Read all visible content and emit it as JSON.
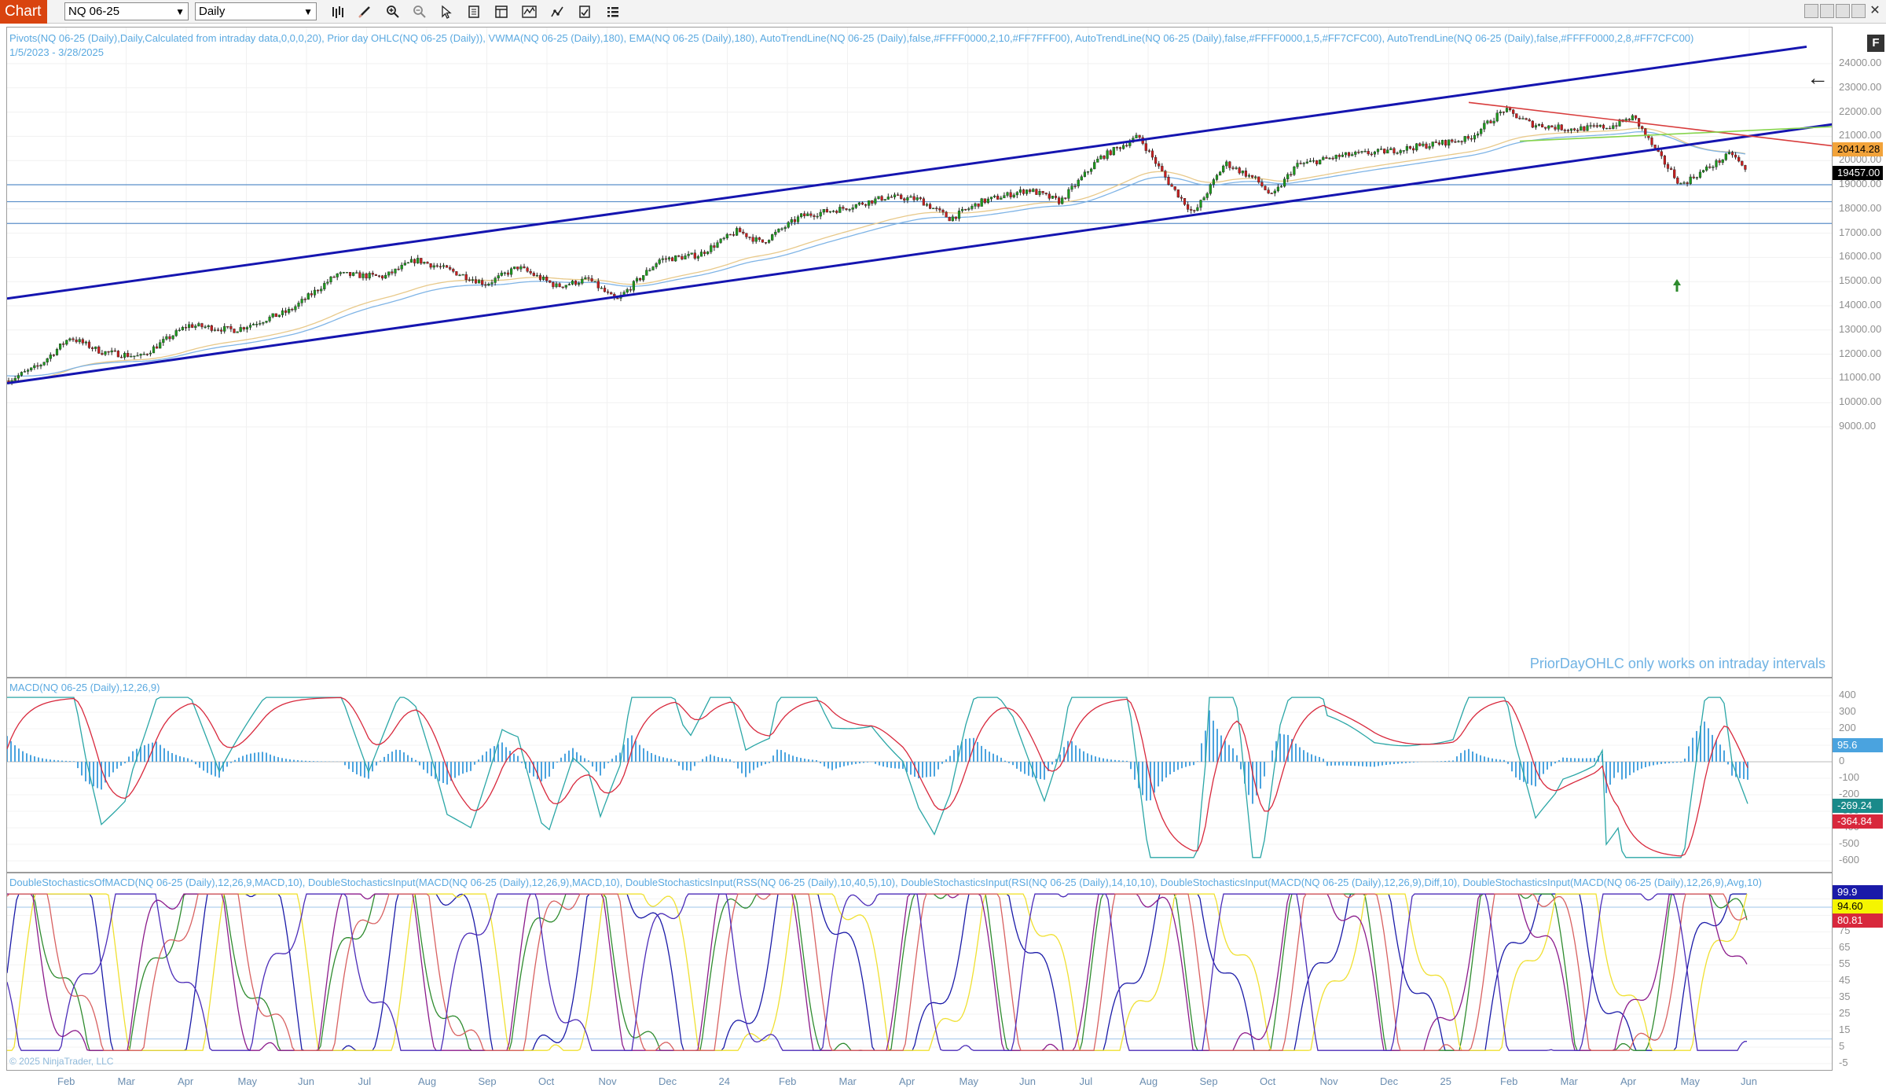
{
  "toolbar": {
    "tab_label": "Chart",
    "instrument": "NQ 06-25",
    "period": "Daily",
    "icons": [
      "bar-type-icon",
      "draw-pencil-icon",
      "zoom-in-icon",
      "zoom-out-icon",
      "pointer-icon",
      "data-box-icon",
      "properties-icon",
      "indicators-icon",
      "strategies-icon",
      "templates-icon",
      "menu-icon"
    ]
  },
  "window_controls": [
    "minimize",
    "maximize",
    "restore",
    "close"
  ],
  "price_panel": {
    "indicator_header": "Pivots(NQ 06-25 (Daily),Daily,Calculated from intraday data,0,0,0,20), Prior day OHLC(NQ 06-25 (Daily)), VWMA(NQ 06-25 (Daily),180), EMA(NQ 06-25 (Daily),180), AutoTrendLine(NQ 06-25 (Daily),false,#FFFF0000,2,10,#FF7FFF00), AutoTrendLine(NQ 06-25 (Daily),false,#FFFF0000,1,5,#FF7CFC00), AutoTrendLine(NQ 06-25 (Daily),false,#FFFF0000,2,8,#FF7CFC00)",
    "date_range": "1/5/2023 - 3/28/2025",
    "note": "PriorDayOHLC only works on intraday intervals",
    "axis_labels": [
      "24000.00",
      "23000.00",
      "22000.00",
      "21000.00",
      "20000.00",
      "19000.00",
      "18000.00",
      "17000.00",
      "16000.00",
      "15000.00",
      "14000.00",
      "13000.00",
      "12000.00",
      "11000.00",
      "10000.00",
      "9000.00"
    ],
    "price_tags": [
      {
        "value": "20414.28",
        "bg": "#f2a33a"
      },
      {
        "value": "19457.00",
        "bg": "#000000"
      }
    ],
    "horizontal_levels": [
      19000,
      18300,
      17400
    ]
  },
  "macd_panel": {
    "label": "MACD(NQ 06-25 (Daily),12,26,9)",
    "axis_labels": [
      "400",
      "300",
      "200",
      "100",
      "0",
      "-100",
      "-200",
      "-300",
      "-400",
      "-500",
      "-600"
    ],
    "tags": [
      {
        "value": "95.6",
        "bg": "#4aa3df"
      },
      {
        "value": "-269.24",
        "bg": "#1a8a8a"
      },
      {
        "value": "-364.84",
        "bg": "#d8283c"
      }
    ]
  },
  "stoch_panel": {
    "label": "DoubleStochasticsOfMACD(NQ 06-25 (Daily),12,26,9,MACD,10), DoubleStochasticsInput(MACD(NQ 06-25 (Daily),12,26,9),MACD,10), DoubleStochasticsInput(RSS(NQ 06-25 (Daily),10,40,5),10), DoubleStochasticsInput(RSI(NQ 06-25 (Daily),14,10,10), DoubleStochasticsInput(MACD(NQ 06-25 (Daily),12,26,9),Diff,10), DoubleStochasticsInput(MACD(NQ 06-25 (Daily),12,26,9),Avg,10)",
    "axis_labels": [
      "95",
      "85",
      "75",
      "65",
      "55",
      "45",
      "35",
      "25",
      "15",
      "5",
      "-5"
    ],
    "tags": [
      {
        "value": "99.9",
        "bg": "#1a1aa8",
        "fg": "#ffffff"
      },
      {
        "value": "94.60",
        "bg": "#f5f500",
        "fg": "#000000"
      },
      {
        "value": "80.81",
        "bg": "#d8283c",
        "fg": "#ffffff"
      }
    ],
    "copyright": "© 2025 NinjaTrader, LLC"
  },
  "x_axis": {
    "labels": [
      "Feb",
      "Mar",
      "Apr",
      "May",
      "Jun",
      "Jul",
      "Aug",
      "Sep",
      "Oct",
      "Nov",
      "Dec",
      "24",
      "Feb",
      "Mar",
      "Apr",
      "May",
      "Jun",
      "Jul",
      "Aug",
      "Sep",
      "Oct",
      "Nov",
      "Dec",
      "25",
      "Feb",
      "Mar",
      "Apr",
      "May",
      "Jun"
    ]
  }
}
